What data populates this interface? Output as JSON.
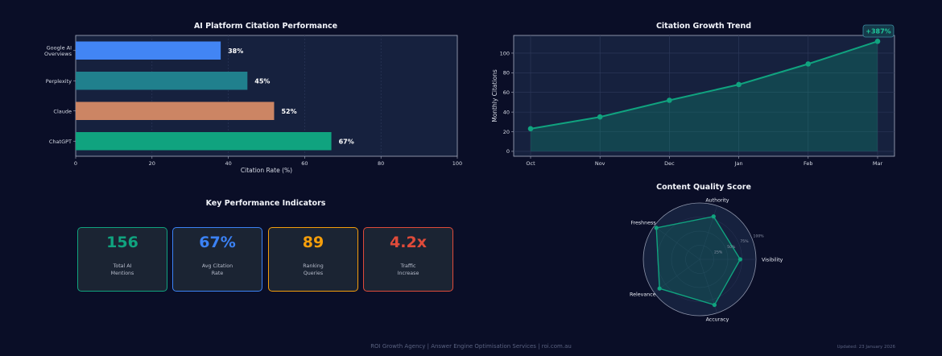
{
  "chart_data": [
    {
      "type": "bar",
      "orientation": "horizontal",
      "title": "AI Platform Citation Performance",
      "xlabel": "Citation Rate (%)",
      "ylabel": "",
      "categories": [
        "ChatGPT",
        "Claude",
        "Perplexity",
        "Google AI Overviews"
      ],
      "category_labels": [
        [
          "ChatGPT"
        ],
        [
          "Claude"
        ],
        [
          "Perplexity"
        ],
        [
          "Google AI",
          "Overviews"
        ]
      ],
      "values": [
        67,
        52,
        45,
        38
      ],
      "value_labels": [
        "67%",
        "52%",
        "45%",
        "38%"
      ],
      "colors": [
        "#10a37f",
        "#cc8564",
        "#20808d",
        "#4285f4"
      ],
      "xlim": [
        0,
        100
      ],
      "xticks": [
        0,
        20,
        40,
        60,
        80,
        100
      ],
      "grid": true
    },
    {
      "type": "area",
      "title": "Citation Growth Trend",
      "xlabel": "",
      "ylabel": "Monthly Citations",
      "categories": [
        "Oct",
        "Nov",
        "Dec",
        "Jan",
        "Feb",
        "Mar"
      ],
      "values": [
        23,
        35,
        52,
        68,
        89,
        112
      ],
      "ylim": [
        -5,
        118
      ],
      "yticks": [
        0,
        20,
        40,
        60,
        80,
        100
      ],
      "annotation": "+387%",
      "color": "#10a37f",
      "grid": true
    },
    {
      "type": "radar",
      "title": "Content Quality Score",
      "axes": [
        "Visibility",
        "Authority",
        "Freshness",
        "Relevance",
        "Accuracy"
      ],
      "values": [
        0.72,
        0.8,
        0.95,
        0.88,
        0.85
      ],
      "ring_labels": [
        "25%",
        "50%",
        "75%",
        "100%"
      ],
      "color": "#10a37f"
    }
  ],
  "kpis": {
    "title": "Key Performance Indicators",
    "cards": [
      {
        "value": "156",
        "label1": "Total AI",
        "label2": "Mentions",
        "color": "#10a37f"
      },
      {
        "value": "67%",
        "label1": "Avg Citation",
        "label2": "Rate",
        "color": "#3b82f6"
      },
      {
        "value": "89",
        "label1": "Ranking",
        "label2": "Queries",
        "color": "#f59e0b"
      },
      {
        "value": "4.2x",
        "label1": "Traffic",
        "label2": "Increase",
        "color": "#e04b3a"
      }
    ]
  },
  "footer": {
    "text": "ROI Growth Agency | Answer Engine Optimisation Services | roi.com.au",
    "updated": "Updated: 23 January 2026"
  }
}
